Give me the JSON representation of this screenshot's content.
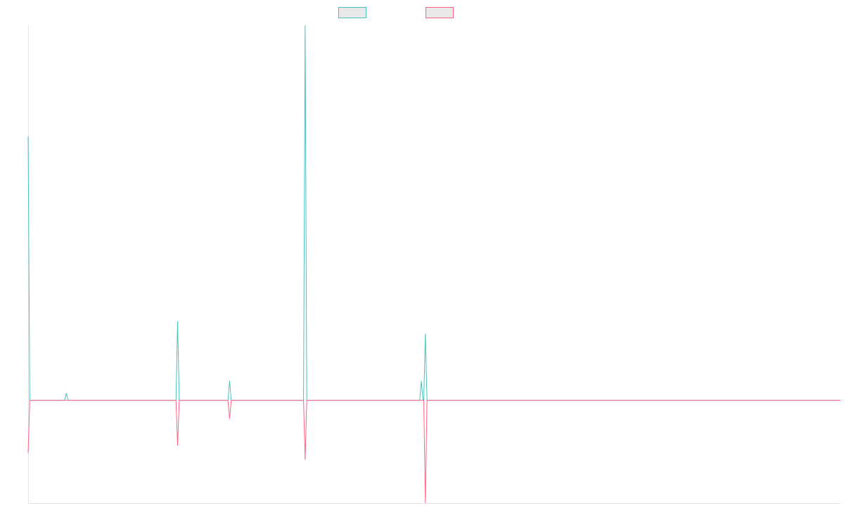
{
  "chart_data": {
    "type": "line",
    "title": "",
    "xlabel": "",
    "ylabel": "",
    "legend_position": "top-center",
    "grid": false,
    "ylim": [
      -1.0,
      3.65
    ],
    "xlim": [
      0,
      1000
    ],
    "baseline": 0,
    "series": [
      {
        "color": "#4BC0C0",
        "points": [
          {
            "x": 0,
            "y": 2.57
          },
          {
            "x": 2,
            "y": 0
          },
          {
            "x": 45,
            "y": 0
          },
          {
            "x": 47,
            "y": 0.07
          },
          {
            "x": 49,
            "y": 0
          },
          {
            "x": 182,
            "y": 0
          },
          {
            "x": 184,
            "y": 0.77
          },
          {
            "x": 186,
            "y": 0
          },
          {
            "x": 246,
            "y": 0
          },
          {
            "x": 248,
            "y": 0.19
          },
          {
            "x": 250,
            "y": 0
          },
          {
            "x": 339,
            "y": 0
          },
          {
            "x": 341,
            "y": 3.65
          },
          {
            "x": 343,
            "y": 0
          },
          {
            "x": 482,
            "y": 0
          },
          {
            "x": 484,
            "y": 0.19
          },
          {
            "x": 486,
            "y": 0
          },
          {
            "x": 487,
            "y": 0
          },
          {
            "x": 489,
            "y": 0.65
          },
          {
            "x": 491,
            "y": 0
          },
          {
            "x": 1000,
            "y": 0
          }
        ]
      },
      {
        "color": "#FF6384",
        "points": [
          {
            "x": 0,
            "y": -0.51
          },
          {
            "x": 2,
            "y": 0
          },
          {
            "x": 182,
            "y": 0
          },
          {
            "x": 184,
            "y": -0.44
          },
          {
            "x": 186,
            "y": 0
          },
          {
            "x": 246,
            "y": 0
          },
          {
            "x": 248,
            "y": -0.18
          },
          {
            "x": 250,
            "y": 0
          },
          {
            "x": 339,
            "y": 0
          },
          {
            "x": 341,
            "y": -0.58
          },
          {
            "x": 343,
            "y": 0
          },
          {
            "x": 487,
            "y": 0
          },
          {
            "x": 489,
            "y": -1.0
          },
          {
            "x": 491,
            "y": 0
          },
          {
            "x": 1000,
            "y": 0
          }
        ]
      }
    ]
  }
}
